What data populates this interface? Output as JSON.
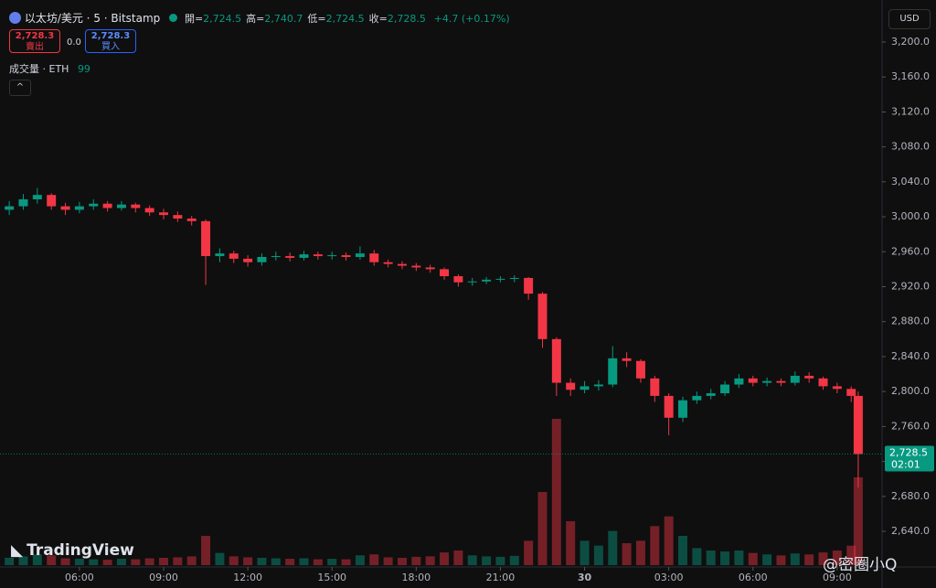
{
  "header": {
    "symbol": "以太坊/美元 · 5 · Bitstamp",
    "ohlc": [
      {
        "label": "開=",
        "value": "2,724.5"
      },
      {
        "label": "高=",
        "value": "2,740.7"
      },
      {
        "label": "低=",
        "value": "2,724.5"
      },
      {
        "label": "收=",
        "value": "2,728.5"
      }
    ],
    "change": "+4.7 (+0.17%)",
    "sell": {
      "price": "2,728.3",
      "label": "賣出"
    },
    "spread": "0.0",
    "buy": {
      "price": "2,728.3",
      "label": "買入"
    },
    "volume_legend": {
      "label": "成交量 · ETH",
      "value": "99"
    },
    "currency": "USD",
    "watermark": "TradingView",
    "credit": "@密圈小Q"
  },
  "chart_data": {
    "type": "candlestick",
    "x": [
      3.5,
      4,
      4.5,
      5,
      5.5,
      6,
      6.5,
      7,
      7.5,
      8,
      8.5,
      9,
      9.5,
      10,
      10.5,
      11,
      11.5,
      12,
      12.5,
      13,
      13.5,
      14,
      14.5,
      15,
      15.5,
      16,
      16.5,
      17,
      17.5,
      18,
      18.5,
      19,
      19.5,
      20,
      20.5,
      21,
      21.5,
      22,
      22.5,
      23,
      23.5,
      24,
      24.5,
      25,
      25.5,
      26,
      26.5,
      27,
      27.5,
      28,
      28.5,
      29,
      29.5,
      30,
      30.5,
      31,
      31.5,
      32,
      32.5,
      33,
      33.5,
      33.75
    ],
    "open": [
      3008,
      3012,
      3020,
      3025,
      3012,
      3008,
      3012,
      3015,
      3010,
      3014,
      3010,
      3005,
      3002,
      2998,
      2995,
      2955,
      2958,
      2952,
      2948,
      2954,
      2955,
      2953,
      2957,
      2955,
      2956,
      2954,
      2958,
      2948,
      2946,
      2944,
      2942,
      2940,
      2932,
      2925,
      2926,
      2928,
      2929,
      2930,
      2912,
      2860,
      2810,
      2802,
      2806,
      2808,
      2838,
      2835,
      2815,
      2795,
      2770,
      2790,
      2795,
      2798,
      2808,
      2815,
      2810,
      2812,
      2810,
      2818,
      2815,
      2806,
      2803,
      2795
    ],
    "high": [
      3018,
      3026,
      3033,
      3027,
      3016,
      3017,
      3020,
      3018,
      3018,
      3016,
      3013,
      3009,
      3006,
      3001,
      2997,
      2964,
      2961,
      2956,
      2958,
      2960,
      2959,
      2961,
      2960,
      2960,
      2959,
      2966,
      2962,
      2951,
      2949,
      2947,
      2945,
      2942,
      2934,
      2930,
      2931,
      2932,
      2933,
      2931,
      2914,
      2862,
      2815,
      2812,
      2813,
      2852,
      2845,
      2837,
      2818,
      2798,
      2794,
      2800,
      2803,
      2812,
      2820,
      2818,
      2816,
      2815,
      2823,
      2822,
      2817,
      2810,
      2806,
      2800
    ],
    "low": [
      3002,
      3008,
      3015,
      3008,
      3002,
      3004,
      3008,
      3006,
      3007,
      3005,
      3001,
      2997,
      2994,
      2990,
      2922,
      2948,
      2947,
      2943,
      2944,
      2950,
      2949,
      2950,
      2951,
      2951,
      2950,
      2951,
      2944,
      2942,
      2940,
      2938,
      2936,
      2928,
      2920,
      2921,
      2923,
      2925,
      2925,
      2905,
      2850,
      2795,
      2795,
      2798,
      2801,
      2805,
      2828,
      2810,
      2788,
      2750,
      2765,
      2786,
      2791,
      2795,
      2804,
      2806,
      2806,
      2806,
      2807,
      2810,
      2802,
      2798,
      2788,
      2690
    ],
    "close": [
      3012,
      3020,
      3025,
      3012,
      3008,
      3012,
      3015,
      3010,
      3014,
      3010,
      3005,
      3002,
      2998,
      2995,
      2955,
      2958,
      2952,
      2948,
      2954,
      2955,
      2953,
      2957,
      2955,
      2956,
      2954,
      2958,
      2948,
      2946,
      2944,
      2942,
      2940,
      2932,
      2925,
      2926,
      2928,
      2929,
      2930,
      2912,
      2860,
      2810,
      2802,
      2806,
      2808,
      2838,
      2835,
      2815,
      2795,
      2770,
      2790,
      2795,
      2798,
      2808,
      2815,
      2810,
      2812,
      2810,
      2818,
      2815,
      2806,
      2803,
      2795,
      2728.5
    ],
    "volume": [
      150,
      180,
      220,
      200,
      140,
      130,
      120,
      110,
      130,
      120,
      140,
      150,
      160,
      180,
      600,
      250,
      180,
      160,
      150,
      140,
      130,
      140,
      120,
      130,
      120,
      200,
      220,
      160,
      150,
      170,
      180,
      260,
      300,
      200,
      180,
      170,
      190,
      500,
      1500,
      3000,
      900,
      500,
      400,
      700,
      450,
      500,
      800,
      1000,
      600,
      350,
      300,
      280,
      300,
      250,
      220,
      200,
      240,
      220,
      260,
      300,
      400,
      1800
    ],
    "up_color": "#089981",
    "down_color": "#f23645",
    "xlim": [
      3.17,
      34.6
    ],
    "xticks": [
      {
        "value": 6,
        "label": "06:00"
      },
      {
        "value": 9,
        "label": "09:00"
      },
      {
        "value": 12,
        "label": "12:00"
      },
      {
        "value": 15,
        "label": "15:00"
      },
      {
        "value": 18,
        "label": "18:00"
      },
      {
        "value": 21,
        "label": "21:00"
      },
      {
        "value": 24,
        "label": "30"
      },
      {
        "value": 27,
        "label": "03:00"
      },
      {
        "value": 30,
        "label": "06:00"
      },
      {
        "value": 33,
        "label": "09:00"
      }
    ],
    "ylim": [
      2599.2,
      3248.1
    ],
    "yticks": [
      {
        "value": 2640,
        "label": "2,640.0"
      },
      {
        "value": 2680,
        "label": "2,680.0"
      },
      {
        "value": 2720,
        "label": "2,720.0"
      },
      {
        "value": 2760,
        "label": "2,760.0"
      },
      {
        "value": 2800,
        "label": "2,800.0"
      },
      {
        "value": 2840,
        "label": "2,840.0"
      },
      {
        "value": 2880,
        "label": "2,880.0"
      },
      {
        "value": 2920,
        "label": "2,920.0"
      },
      {
        "value": 2960,
        "label": "2,960.0"
      },
      {
        "value": 3000,
        "label": "3,000.0"
      },
      {
        "value": 3040,
        "label": "3,040.0"
      },
      {
        "value": 3080,
        "label": "3,080.0"
      },
      {
        "value": 3120,
        "label": "3,120.0"
      },
      {
        "value": 3160,
        "label": "3,160.0"
      },
      {
        "value": 3200,
        "label": "3,200.0"
      }
    ],
    "last_price": {
      "value": 2728.5,
      "label": "2,728.5"
    },
    "countdown": "02:01",
    "grid": false
  }
}
